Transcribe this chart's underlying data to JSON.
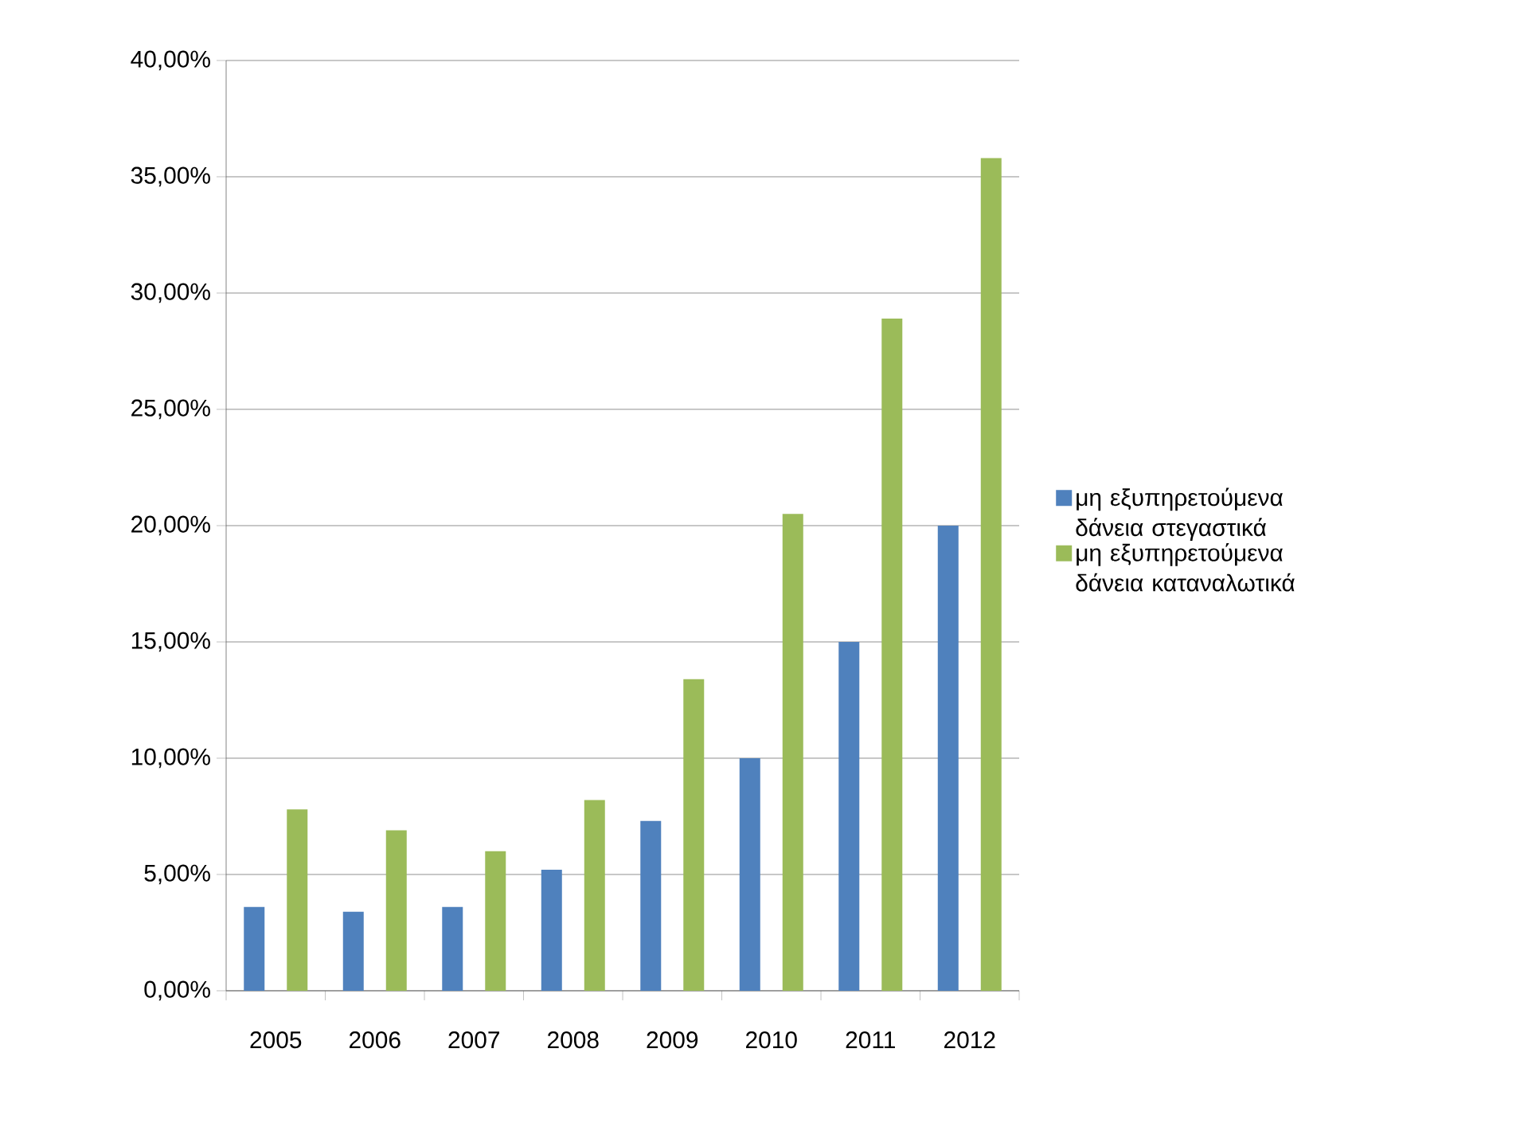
{
  "chart_data": {
    "type": "bar",
    "categories": [
      "2005",
      "2006",
      "2007",
      "2008",
      "2009",
      "2010",
      "2011",
      "2012"
    ],
    "series": [
      {
        "name": "μη εξυπηρετούμενα δάνεια στεγαστικά",
        "color": "#4f81bd",
        "values": [
          3.6,
          3.4,
          3.6,
          5.2,
          7.3,
          10,
          15,
          20
        ]
      },
      {
        "name": "μη εξυπηρετούμενα δάνεια καταναλωτικά",
        "color": "#9bbb59",
        "values": [
          7.8,
          6.9,
          6.0,
          8.2,
          13.4,
          20.5,
          28.9,
          35.8
        ]
      }
    ],
    "ylim": [
      0,
      40
    ],
    "yticks": [
      {
        "value": 0,
        "label": "0,00%"
      },
      {
        "value": 5,
        "label": "5,00%"
      },
      {
        "value": 10,
        "label": "10,00%"
      },
      {
        "value": 15,
        "label": "15,00%"
      },
      {
        "value": 20,
        "label": "20,00%"
      },
      {
        "value": 25,
        "label": "25,00%"
      },
      {
        "value": 30,
        "label": "30,00%"
      },
      {
        "value": 35,
        "label": "35,00%"
      },
      {
        "value": 40,
        "label": "40,00%"
      }
    ],
    "grid": "y",
    "legend": "right"
  }
}
